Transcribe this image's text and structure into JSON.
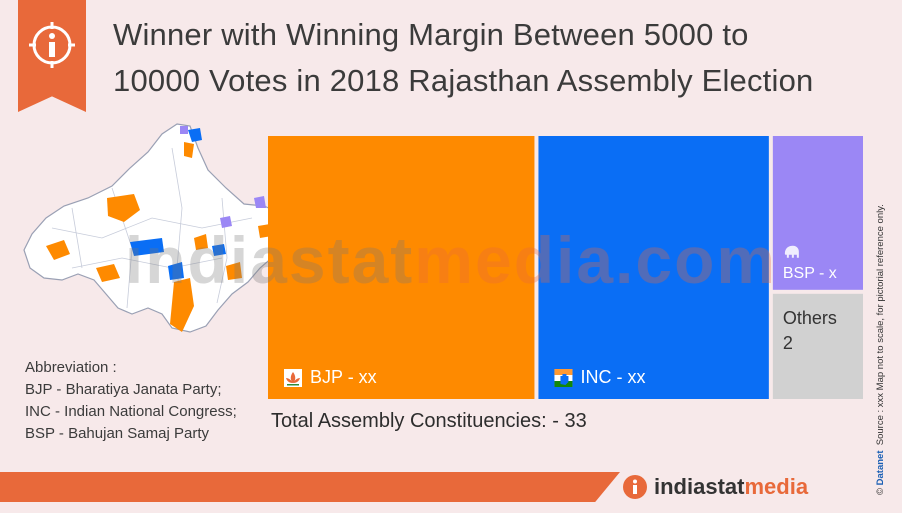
{
  "title_lines": [
    "Winner with Winning Margin Between 5000 to",
    "10000 Votes in 2018 Rajasthan Assembly Election"
  ],
  "watermark": {
    "part_a": "indiastat",
    "part_b": "media.com"
  },
  "abbreviations": {
    "heading": "Abbreviation :",
    "items": [
      "BJP - Bharatiya Janata Party;",
      "INC - Indian National Congress;",
      "BSP - Bahujan Samaj Party"
    ]
  },
  "total_label": "Total Assembly Constituencies: - 33",
  "source_note": {
    "brand": "Datanet",
    "text": "Source : xxx  Map not to scale, for pictorial reference only."
  },
  "logo": {
    "part_a": "indiastat",
    "part_b": "media"
  },
  "colors": {
    "accent": "#e8693a",
    "bjp": "#fe8a00",
    "inc": "#0a6ef5",
    "bsp": "#9b87f5",
    "others": "#d1d1d1"
  },
  "chart_data": {
    "type": "treemap",
    "total": 33,
    "items": [
      {
        "key": "bjp",
        "label": "BJP - xx",
        "value": 15,
        "color": "#fe8a00",
        "icon": "lotus-icon"
      },
      {
        "key": "inc",
        "label": "INC - xx",
        "value": 13,
        "color": "#0a6ef5",
        "icon": "hand-icon"
      },
      {
        "key": "bsp",
        "label": "BSP - x",
        "value": 3,
        "color": "#9b87f5",
        "icon": "elephant-icon"
      },
      {
        "key": "others",
        "label": "Others",
        "sublabel": "2",
        "value": 2,
        "color": "#d1d1d1"
      }
    ]
  }
}
